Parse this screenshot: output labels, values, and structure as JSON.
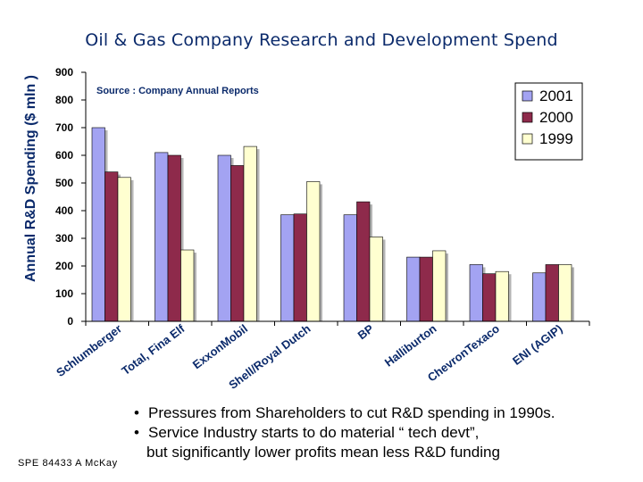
{
  "slide": {
    "title": "Oil & Gas Company Research and Development Spend",
    "footer": "SPE 84433  A McKay",
    "bullets": [
      "Pressures from Shareholders to cut R&D spending in 1990s.",
      "Service Industry starts to do material “ tech devt”,",
      "but significantly lower profits mean less R&D funding"
    ],
    "bullet_symbol": "•"
  },
  "chart_data": {
    "type": "bar",
    "title": "Oil & Gas Company Research and Development Spend",
    "ylabel": "Annual R&D Spending ($ mln )",
    "xlabel": "",
    "annotation": "Source : Company Annual Reports",
    "ylim": [
      0,
      900
    ],
    "yticks": [
      0,
      100,
      200,
      300,
      400,
      500,
      600,
      700,
      800,
      900
    ],
    "grid": false,
    "legend_position": "top-right",
    "categories": [
      "Schlumberger",
      "Total, Fina Elf",
      "ExxonMobil",
      "Shell/Royal Dutch",
      "BP",
      "Halliburton",
      "ChevronTexaco",
      "ENI (AGIP)"
    ],
    "series": [
      {
        "name": "2001",
        "color": "#a3a3f2",
        "values": [
          700,
          610,
          600,
          385,
          385,
          232,
          205,
          175
        ]
      },
      {
        "name": "2000",
        "color": "#8e2a4b",
        "values": [
          540,
          600,
          563,
          388,
          432,
          232,
          172,
          205
        ]
      },
      {
        "name": "1999",
        "color": "#ffffd0",
        "values": [
          520,
          258,
          632,
          505,
          305,
          255,
          180,
          205
        ]
      }
    ]
  }
}
